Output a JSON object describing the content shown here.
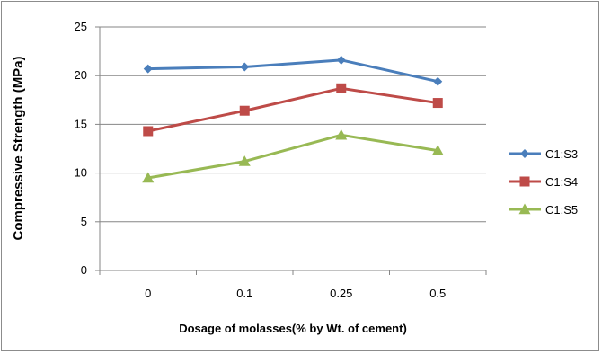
{
  "chart_data": {
    "type": "line",
    "title": "",
    "xlabel": "Dosage of molasses(% by Wt. of cement)",
    "ylabel": "Compressive Strength (MPa)",
    "categories": [
      "0",
      "0.1",
      "0.25",
      "0.5"
    ],
    "ylim": [
      0,
      25
    ],
    "yticks": [
      0,
      5,
      10,
      15,
      20,
      25
    ],
    "grid": true,
    "legend_position": "right",
    "series": [
      {
        "name": "C1:S3",
        "values": [
          20.7,
          20.9,
          21.6,
          19.4
        ],
        "color": "#4a7ebb",
        "marker": "diamond"
      },
      {
        "name": "C1:S4",
        "values": [
          14.3,
          16.4,
          18.7,
          17.2
        ],
        "color": "#be4b48",
        "marker": "square"
      },
      {
        "name": "C1:S5",
        "values": [
          9.5,
          11.2,
          13.9,
          12.3
        ],
        "color": "#98b954",
        "marker": "triangle"
      }
    ]
  }
}
